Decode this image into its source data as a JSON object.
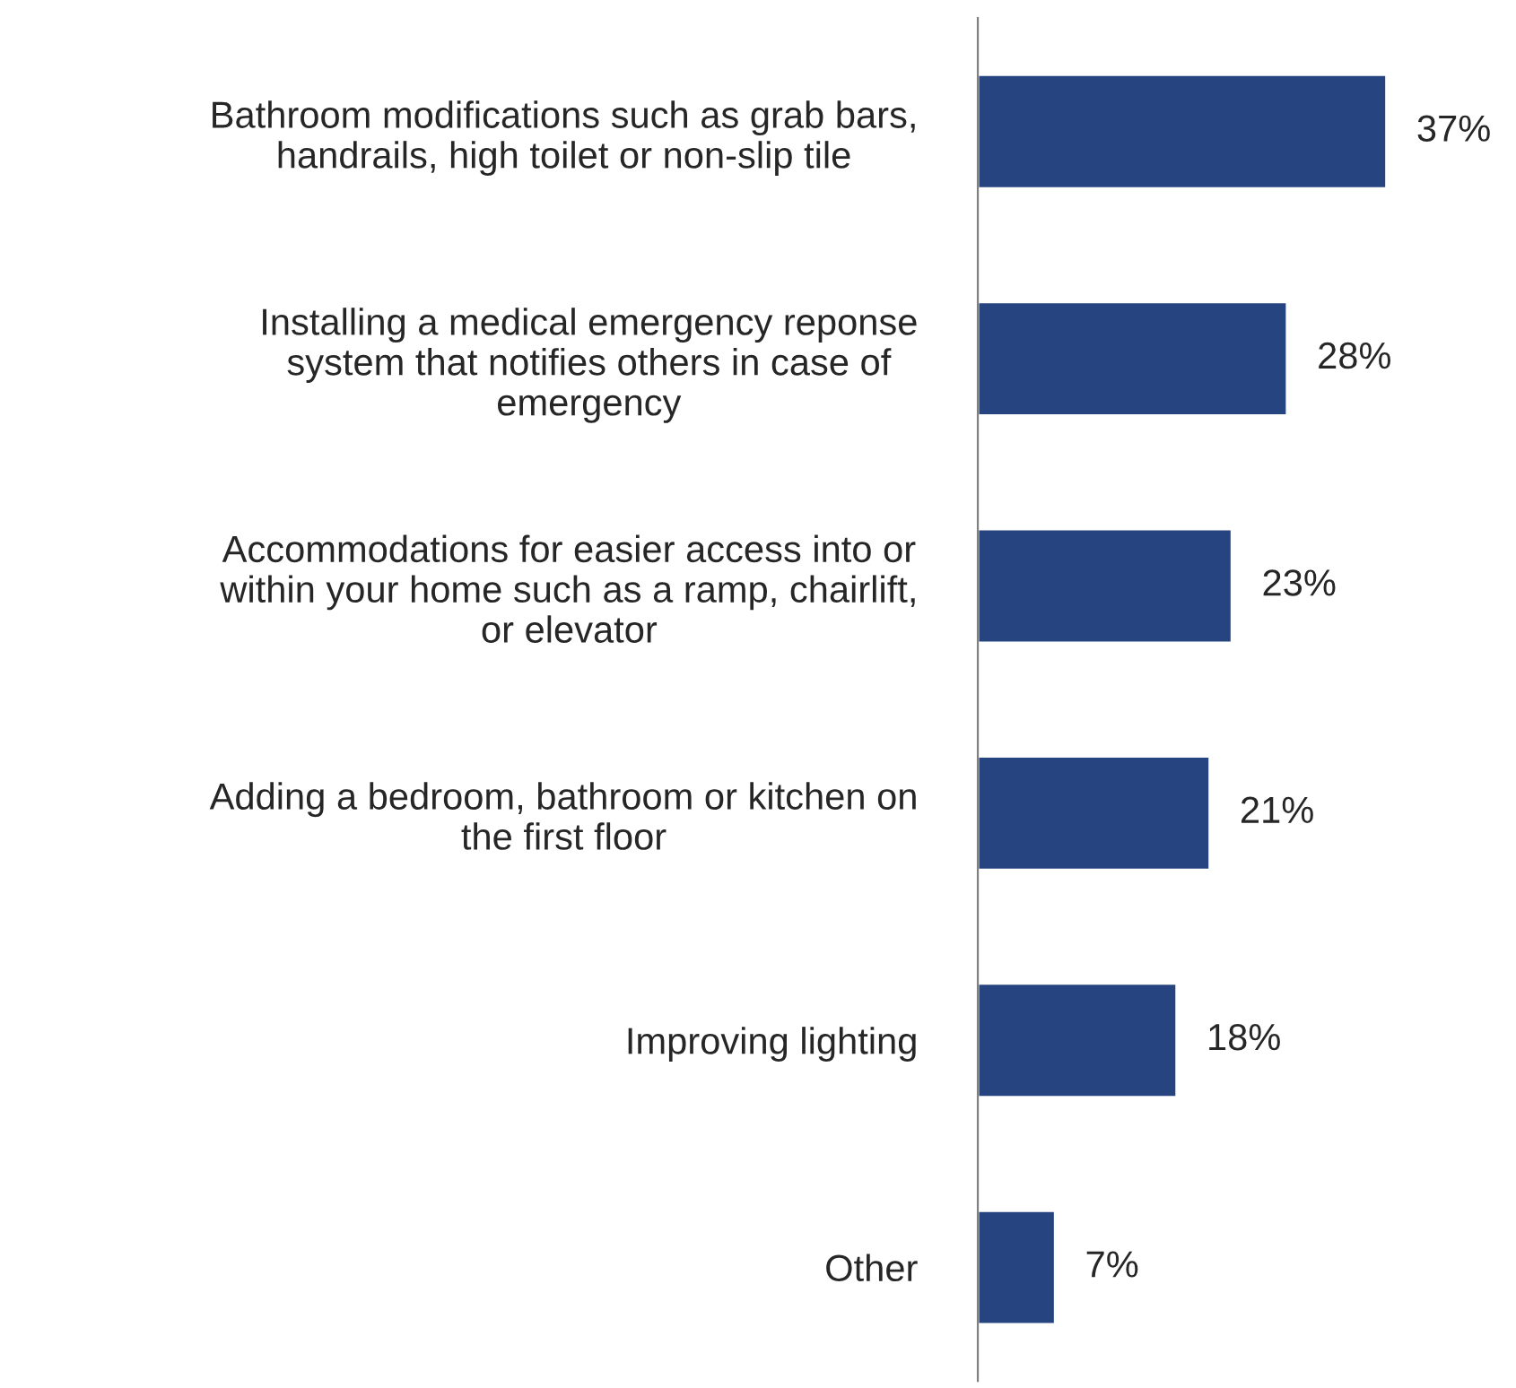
{
  "chart_data": {
    "type": "bar",
    "orientation": "horizontal",
    "categories": [
      "Bathroom modifications such as grab bars,\nhandrails, high toilet or non-slip tile",
      "Installing a medical emergency reponse\nsystem that notifies others in case of\nemergency",
      "Accommodations for easier access into or\nwithin your home such as a ramp, chairlift,\nor elevator",
      "Adding a bedroom, bathroom or kitchen on\nthe first floor",
      "Improving lighting",
      "Other"
    ],
    "values": [
      37,
      28,
      23,
      21,
      18,
      7
    ],
    "value_labels": [
      "37%",
      "28%",
      "23%",
      "21%",
      "18%",
      "7%"
    ],
    "color": "#264580",
    "grid": false,
    "legend": false,
    "tick_labels": "y"
  }
}
